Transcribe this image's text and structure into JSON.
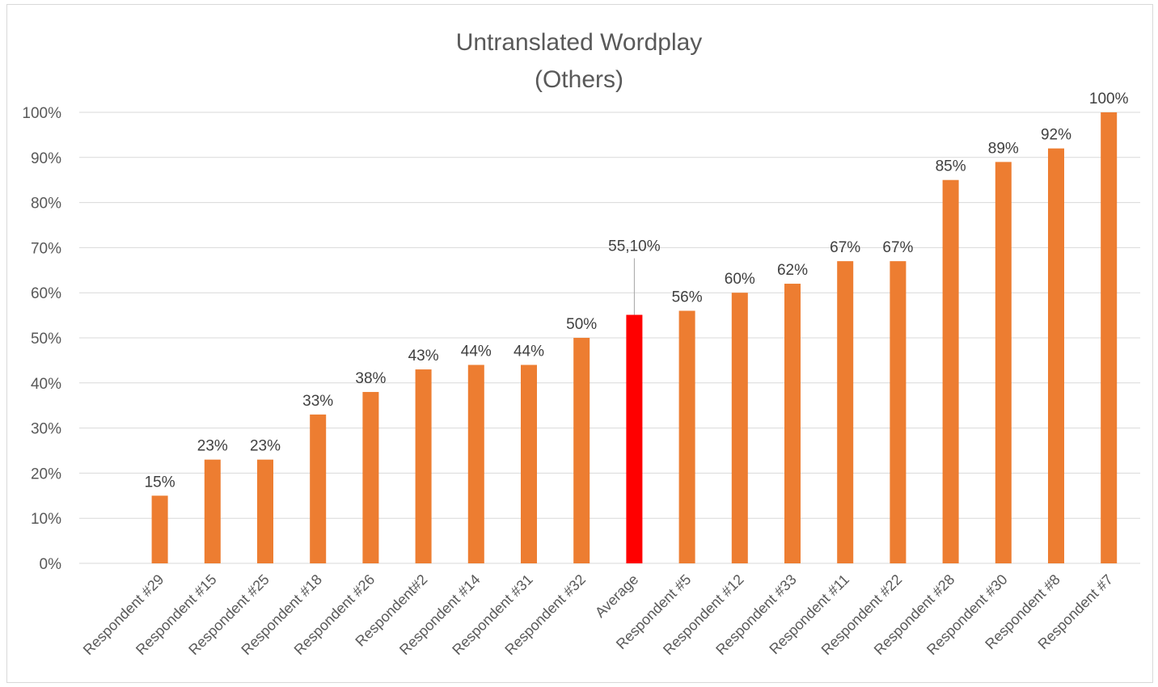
{
  "chart_data": {
    "type": "bar",
    "title_lines": [
      "Untranslated Wordplay",
      "(Others)"
    ],
    "categories": [
      "Respondent #29",
      "Respondent #15",
      "Respondent #25",
      "Respondent #18",
      "Respondent #26",
      "Respondent#2",
      "Respondent #14",
      "Respondent #31",
      "Respondent #32",
      "Average",
      "Respondent #5",
      "Respondent #12",
      "Respondent #33",
      "Respondent #11",
      "Respondent #22",
      "Respondent #28",
      "Respondent #30",
      "Respondent #8",
      "Respondent #7"
    ],
    "values": [
      15,
      23,
      23,
      33,
      38,
      43,
      44,
      44,
      50,
      55.1,
      56,
      60,
      62,
      67,
      67,
      85,
      89,
      92,
      100
    ],
    "data_labels": [
      "15%",
      "23%",
      "23%",
      "33%",
      "38%",
      "43%",
      "44%",
      "44%",
      "50%",
      "55,10%",
      "56%",
      "60%",
      "62%",
      "67%",
      "67%",
      "85%",
      "89%",
      "92%",
      "100%"
    ],
    "highlight_category": "Average",
    "colors": {
      "bar": "#ED7D31",
      "highlight": "#FF0000"
    },
    "ylim": [
      0,
      100
    ],
    "yticks": [
      "0%",
      "10%",
      "20%",
      "30%",
      "40%",
      "50%",
      "60%",
      "70%",
      "80%",
      "90%",
      "100%"
    ],
    "grid": true,
    "legend": "none"
  }
}
